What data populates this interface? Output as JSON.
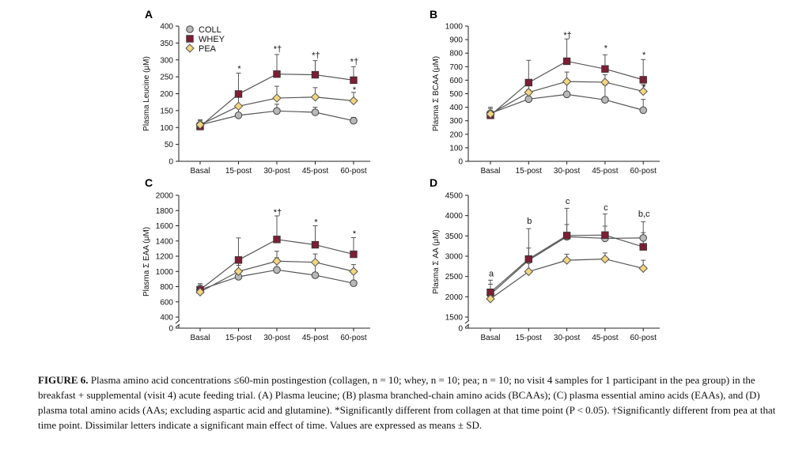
{
  "chart_data": [
    {
      "panel": "A",
      "type": "line",
      "ylabel": "Plasma Leucine (μM)",
      "categories": [
        "Basal",
        "15-post",
        "30-post",
        "45-post",
        "60-post"
      ],
      "ylim": [
        0,
        400
      ],
      "yticks": [
        0,
        50,
        100,
        150,
        200,
        250,
        300,
        350,
        400
      ],
      "axis_break": false,
      "series": [
        {
          "name": "COLL",
          "color": "#b8b8b8",
          "marker": "circle",
          "values": [
            108,
            136,
            149,
            145,
            120
          ],
          "sd": [
            12,
            25,
            20,
            15,
            10
          ]
        },
        {
          "name": "WHEY",
          "color": "#7b1f35",
          "marker": "square",
          "values": [
            103,
            199,
            258,
            256,
            240
          ],
          "sd": [
            10,
            62,
            58,
            42,
            40
          ]
        },
        {
          "name": "PEA",
          "color": "#f2d57e",
          "marker": "diamond",
          "values": [
            108,
            163,
            187,
            190,
            179
          ],
          "sd": [
            15,
            30,
            35,
            28,
            25
          ]
        }
      ],
      "annotations": [
        {
          "category": "15-post",
          "text": "*",
          "y": 275
        },
        {
          "category": "30-post",
          "text": "*†",
          "y": 333
        },
        {
          "category": "45-post",
          "text": "*†",
          "y": 315
        },
        {
          "category": "60-post",
          "text": "*†",
          "y": 296
        },
        {
          "category": "60-post",
          "text": "*",
          "y": 213
        }
      ]
    },
    {
      "panel": "B",
      "type": "line",
      "ylabel": "Plasma Σ BCAA (μM)",
      "categories": [
        "Basal",
        "15-post",
        "30-post",
        "45-post",
        "60-post"
      ],
      "ylim": [
        0,
        1000
      ],
      "yticks": [
        0,
        100,
        200,
        300,
        400,
        500,
        600,
        700,
        800,
        900,
        1000
      ],
      "axis_break": false,
      "series": [
        {
          "name": "COLL",
          "color": "#b8b8b8",
          "marker": "circle",
          "values": [
            355,
            460,
            495,
            455,
            378
          ],
          "sd": [
            45,
            70,
            95,
            110,
            80
          ]
        },
        {
          "name": "WHEY",
          "color": "#7b1f35",
          "marker": "square",
          "values": [
            340,
            582,
            740,
            683,
            603
          ],
          "sd": [
            30,
            165,
            165,
            105,
            150
          ]
        },
        {
          "name": "PEA",
          "color": "#f2d57e",
          "marker": "diamond",
          "values": [
            350,
            510,
            590,
            585,
            517
          ],
          "sd": [
            40,
            80,
            70,
            55,
            50
          ]
        }
      ],
      "annotations": [
        {
          "category": "30-post",
          "text": "*†",
          "y": 935
        },
        {
          "category": "45-post",
          "text": "*",
          "y": 840
        },
        {
          "category": "60-post",
          "text": "*",
          "y": 790
        },
        {
          "category": "60-post",
          "text": "*",
          "y": 550
        }
      ]
    },
    {
      "panel": "C",
      "type": "line",
      "ylabel": "Plasma Σ EAA (μM)",
      "categories": [
        "Basal",
        "15-post",
        "30-post",
        "45-post",
        "60-post"
      ],
      "ylim": [
        0,
        2000
      ],
      "yticks": [
        0,
        400,
        600,
        800,
        1000,
        1200,
        1400,
        1600,
        1800,
        2000
      ],
      "axis_break": true,
      "series": [
        {
          "name": "COLL",
          "color": "#b8b8b8",
          "marker": "circle",
          "values": [
            760,
            930,
            1020,
            950,
            845
          ],
          "sd": [
            80,
            150,
            160,
            150,
            160
          ]
        },
        {
          "name": "WHEY",
          "color": "#7b1f35",
          "marker": "square",
          "values": [
            760,
            1150,
            1420,
            1350,
            1225
          ],
          "sd": [
            60,
            290,
            310,
            250,
            220
          ]
        },
        {
          "name": "PEA",
          "color": "#f2d57e",
          "marker": "diamond",
          "values": [
            730,
            1000,
            1135,
            1120,
            1000
          ],
          "sd": [
            90,
            120,
            130,
            110,
            90
          ]
        }
      ],
      "annotations": [
        {
          "category": "30-post",
          "text": "*†",
          "y": 1780
        },
        {
          "category": "45-post",
          "text": "*",
          "y": 1650
        },
        {
          "category": "60-post",
          "text": "*",
          "y": 1500
        }
      ]
    },
    {
      "panel": "D",
      "type": "line",
      "ylabel": "Plasma Σ AA (μM)",
      "categories": [
        "Basal",
        "15-post",
        "30-post",
        "45-post",
        "60-post"
      ],
      "ylim": [
        0,
        4500
      ],
      "yticks": [
        0,
        1500,
        2000,
        2500,
        3000,
        3500,
        4000,
        4500
      ],
      "axis_break": true,
      "series": [
        {
          "name": "COLL",
          "color": "#b8b8b8",
          "marker": "circle",
          "values": [
            2060,
            2900,
            3480,
            3440,
            3450
          ],
          "sd": [
            250,
            300,
            300,
            300,
            400
          ]
        },
        {
          "name": "WHEY",
          "color": "#7b1f35",
          "marker": "square",
          "values": [
            2110,
            2930,
            3510,
            3520,
            3230
          ],
          "sd": [
            300,
            750,
            670,
            520,
            350
          ]
        },
        {
          "name": "PEA",
          "color": "#f2d57e",
          "marker": "diamond",
          "values": [
            1950,
            2620,
            2900,
            2930,
            2700
          ],
          "sd": [
            200,
            300,
            150,
            150,
            200
          ]
        }
      ],
      "annotations": [
        {
          "category": "Basal",
          "text": "a",
          "y": 2580
        },
        {
          "category": "15-post",
          "text": "b",
          "y": 3880
        },
        {
          "category": "30-post",
          "text": "c",
          "y": 4360
        },
        {
          "category": "45-post",
          "text": "c",
          "y": 4210
        },
        {
          "category": "60-post",
          "text": "b,c",
          "y": 4050
        }
      ]
    }
  ],
  "legend": {
    "items": [
      "COLL",
      "WHEY",
      "PEA"
    ],
    "placement": "top-left of panel A"
  },
  "caption": {
    "label": "FIGURE 6.",
    "text": "Plasma amino acid concentrations ≤60-min postingestion (collagen, n = 10; whey, n = 10; pea; n = 10; no visit 4 samples for 1 participant in the pea group) in the breakfast + supplemental (visit 4) acute feeding trial. (A) Plasma leucine; (B) plasma branched-chain amino acids (BCAAs); (C) plasma essential amino acids (EAAs), and (D) plasma total amino acids (AAs; excluding aspartic acid and glutamine). *Significantly different from collagen at that time point (P < 0.05). †Significantly different from pea at that time point. Dissimilar letters indicate a significant main effect of time. Values are expressed as means ± SD."
  }
}
